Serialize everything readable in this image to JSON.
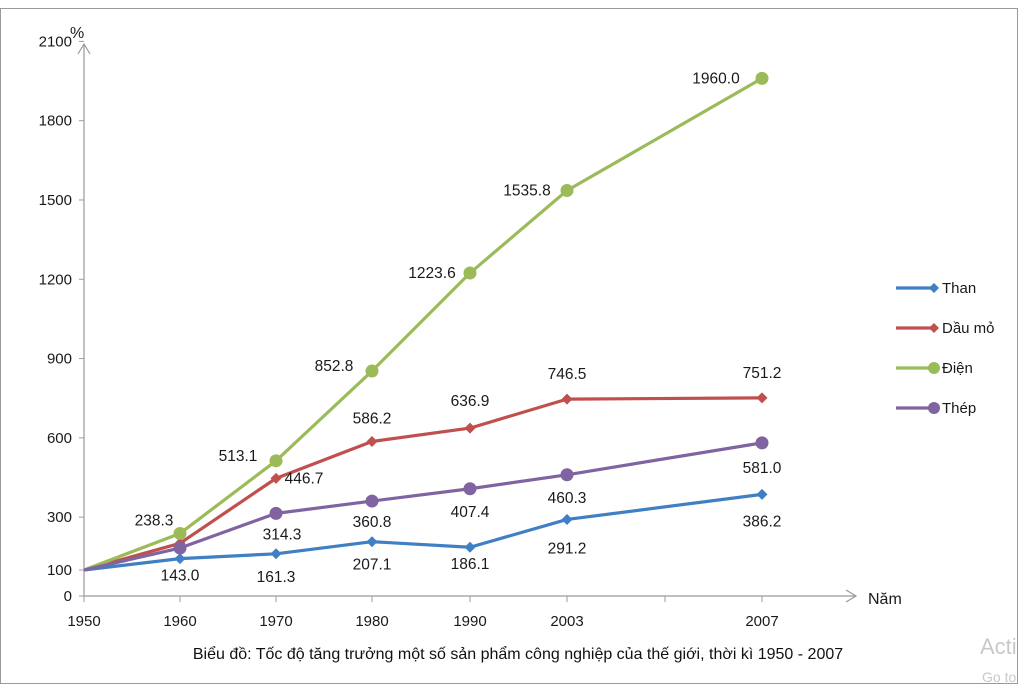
{
  "chart_data": {
    "type": "line",
    "title": "Biểu đồ: Tốc độ tăng trưởng một số sản phẩm công nghiệp của thế giới, thời kì 1950 - 2007",
    "xlabel": "Năm",
    "ylabel": "%",
    "x": [
      1950,
      1960,
      1970,
      1980,
      1990,
      2003,
      2007
    ],
    "x_tick_labels": [
      "1950",
      "1960",
      "1970",
      "1980",
      "1990",
      "2003",
      "2007"
    ],
    "y_ticks": [
      0,
      100,
      300,
      600,
      900,
      1200,
      1500,
      1800,
      2100
    ],
    "y_tick_labels": [
      "0",
      "100",
      "300",
      "600",
      "900",
      "1200",
      "1500",
      "1800",
      "2100"
    ],
    "ylim": [
      0,
      2100
    ],
    "grid": false,
    "legend_position": "right",
    "series": [
      {
        "name": "Than",
        "color": "#3f7fc4",
        "marker": "diamond",
        "values": [
          100,
          143.0,
          161.3,
          207.1,
          186.1,
          291.2,
          386.2
        ],
        "labels": [
          "",
          "143.0",
          "161.3",
          "207.1",
          "186.1",
          "291.2",
          "386.2"
        ]
      },
      {
        "name": "Dầu mỏ",
        "color": "#c0504d",
        "marker": "diamond",
        "values": [
          100,
          201.1,
          446.7,
          586.2,
          636.9,
          746.5,
          751.2
        ],
        "labels": [
          "",
          "",
          "446.7",
          "586.2",
          "636.9",
          "746.5",
          "751.2"
        ]
      },
      {
        "name": "Điện",
        "color": "#9bbb59",
        "marker": "circle",
        "values": [
          100,
          238.3,
          513.1,
          852.8,
          1223.6,
          1535.8,
          1960.0
        ],
        "labels": [
          "",
          "238.3",
          "513.1",
          "852.8",
          "1223.6",
          "1535.8",
          "1960.0"
        ]
      },
      {
        "name": "Thép",
        "color": "#8064a2",
        "marker": "circle",
        "values": [
          100,
          183.1,
          314.3,
          360.8,
          407.4,
          460.3,
          581.0
        ],
        "labels": [
          "",
          "",
          "314.3",
          "360.8",
          "407.4",
          "460.3",
          "581.0"
        ]
      }
    ]
  },
  "watermark": {
    "line1": "Acti",
    "line2": "Go to"
  }
}
